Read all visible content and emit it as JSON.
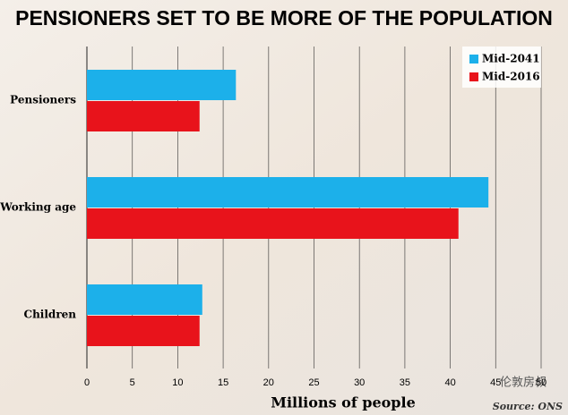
{
  "chart_data": {
    "type": "hbar",
    "title": "PENSIONERS SET TO BE MORE OF THE POPULATION",
    "categories": [
      "Pensioners",
      "Working age",
      "Children"
    ],
    "series": [
      {
        "name": "Mid-2041",
        "color": "#1cb0ea",
        "values": [
          16.4,
          44.2,
          12.7
        ]
      },
      {
        "name": "Mid-2016",
        "color": "#e8131b",
        "values": [
          12.4,
          40.9,
          12.4
        ]
      }
    ],
    "xlim": [
      0,
      50
    ],
    "xticks": [
      0,
      5,
      10,
      15,
      20,
      25,
      30,
      35,
      40,
      45,
      50
    ],
    "x_label": "Millions of people",
    "source": "Source: ONS",
    "watermark": "伦敦房叔",
    "grid": true,
    "legend": "top-right"
  }
}
